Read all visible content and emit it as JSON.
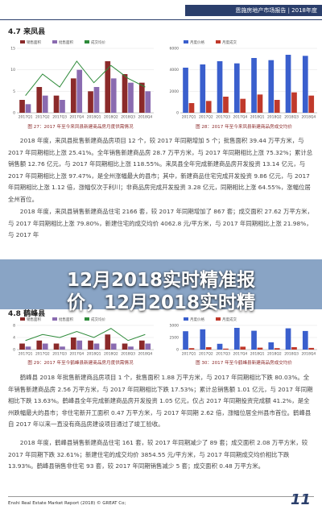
{
  "header": {
    "title": "恩施房地产市场报告",
    "year": "2018年度"
  },
  "sections": [
    {
      "heading": "4.7 来凤县",
      "figures": [
        {
          "caption": "图 27：2017 年至今来凤县新建商品房月度供需情况",
          "chart": {
            "type": "bar",
            "categories": [
              "2017Q1",
              "2017Q2",
              "2017Q3",
              "2017Q4",
              "2018Q1",
              "2018Q2",
              "2018Q3",
              "2018Q4"
            ],
            "series": [
              {
                "name": "销售面积",
                "color": "#8b2a2a",
                "values": [
                  3,
                  6,
                  4,
                  8,
                  5,
                  12,
                  9,
                  7
                ]
              },
              {
                "name": "批售面积",
                "color": "#8a6bb0",
                "values": [
                  2,
                  4,
                  3,
                  10,
                  6,
                  8,
                  7,
                  5
                ]
              },
              {
                "name": "成交均价",
                "color": "#2e8b3a",
                "type": "line",
                "values": [
                  4,
                  9,
                  6,
                  12,
                  7,
                  11,
                  8,
                  6
                ]
              }
            ],
            "ylim": [
              0,
              15
            ],
            "yticks": [
              0,
              5,
              10,
              15
            ]
          }
        },
        {
          "caption": "图 28：2017 年至今来凤县新建商品房成交均价",
          "chart": {
            "type": "bar",
            "categories": [
              "2017Q1",
              "2017Q2",
              "2017Q3",
              "2017Q4",
              "2018Q1",
              "2018Q2",
              "2018Q3",
              "2018Q4"
            ],
            "series": [
              {
                "name": "月度价格",
                "color": "#3a5fcd",
                "values": [
                  4200,
                  4500,
                  4800,
                  4600,
                  5100,
                  4900,
                  5400,
                  5300
                ]
              },
              {
                "name": "月度成交",
                "color": "#c0392b",
                "values": [
                  900,
                  1100,
                  1500,
                  1300,
                  1700,
                  1200,
                  1900,
                  1600
                ]
              }
            ],
            "ylim": [
              0,
              6000
            ],
            "yticks": [
              0,
              2000,
              4000,
              6000
            ]
          }
        }
      ],
      "paragraphs": [
        "2018 年度，来凤县批售新建商品房项目 12 个，较 2017 年同期增加 5 个；批售面积 39.44 万平方米，与 2017 年同期相比上涨 25.41%。全年销售新建商品房 28.7 万平方米，与 2017 年同期相比上涨 75.32%；累计总销售额 12.76 亿元，与 2017 年同期相比上涨 118.55%。来凤县全年完成新建商品房开发投资 13.14 亿元，与 2017 年同期相比上涨 97.47%，是全州涨幅最大的县市；其中，新建商品住宅完成开发投资 9.86 亿元，与 2017 年同期相比上涨 1.12 倍，涨幅仅次于利川；非商品房完成开发投资 3.28 亿元，同期相比上涨 64.55%，涨幅位居全州首位。",
        "2018 年度，来凤县销售新建商品住宅 2166 套，较 2017 年同期增加了 867 套；成交面积 27.62 万平方米，与 2017 年同期相比上涨 79.80%，新建住宅的成交均价 4062.8 元/平方米，与 2017 年同期相比上涨 21.98%，与 2017 年"
      ]
    },
    {
      "heading": "4.8 鹤峰县",
      "figures": [
        {
          "caption": "图 29：2017 年至今鹤峰县新建商品房月度供需情况",
          "chart": {
            "type": "bar",
            "categories": [
              "2017Q1",
              "2017Q2",
              "2017Q3",
              "2017Q4",
              "2018Q1",
              "2018Q2",
              "2018Q3",
              "2018Q4"
            ],
            "series": [
              {
                "name": "销售面积",
                "color": "#8b2a2a",
                "values": [
                  2,
                  3,
                  2,
                  4,
                  3,
                  5,
                  2,
                  3
                ]
              },
              {
                "name": "批售面积",
                "color": "#8a6bb0",
                "values": [
                  1,
                  2,
                  1,
                  3,
                  2,
                  2,
                  1,
                  2
                ]
              },
              {
                "name": "成交均价",
                "color": "#2e8b3a",
                "type": "line",
                "values": [
                  3,
                  5,
                  4,
                  6,
                  4,
                  7,
                  3,
                  5
                ]
              }
            ],
            "ylim": [
              0,
              8
            ],
            "yticks": [
              0,
              4,
              8
            ]
          }
        },
        {
          "caption": "图 30：2017 年至今鹤峰县新建商品房成交均价",
          "chart": {
            "type": "bar",
            "categories": [
              "2017Q1",
              "2017Q2",
              "2017Q3",
              "2017Q4",
              "2018Q1",
              "2018Q2",
              "2018Q3",
              "2018Q4"
            ],
            "series": [
              {
                "name": "月度价格",
                "color": "#3a5fcd",
                "values": [
                  3800,
                  4200,
                  1200,
                  4500,
                  3900,
                  1500,
                  4400,
                  3850
                ]
              },
              {
                "name": "月度成交",
                "color": "#c0392b",
                "values": [
                  300,
                  500,
                  200,
                  600,
                  400,
                  300,
                  500,
                  350
                ]
              }
            ],
            "ylim": [
              0,
              5000
            ],
            "yticks": [
              0,
              2500,
              5000
            ]
          }
        }
      ],
      "paragraphs": [
        "鹤峰县 2018 年批售新建商品房项目 1 个，批售面积 1.88 万平方米，与 2017 年同期相比下跌 80.03%。全年销售新建商品房 2.56 万平方米，与 2017 年同期相比下跌 17.53%；累计总销售额 1.01 亿元，与 2017 年同期相比下跌 13.63%。鹤峰县全年完成新建商品房开发投资 1.05 亿元，仅占 2017 年同期投资完成额 41.2%，是全州跌幅最大的县市；非住宅新开工面积 0.47 万平方米，与 2017 年同期 2.62 倍，涨幅位居全州县市首位。鹤峰县自 2017 年以来一直没有商品房建设项目通过了竣工验收。",
        "2018 年度，鹤峰县销售新建商品住宅 161 套，较 2017 年同期减少了 89 套；成交面积 2.08 万平方米，较 2017 年同期下跌 32.61%；新建住宅的成交均价 3854.55 元/平方米，与 2017 年同期成交均价相比下跌 13.93%。鹤峰县销售非住宅 93 套，较 2017 年同期销售减少 5 套；成交面积 0.48 万平方米。"
      ]
    }
  ],
  "overlay": {
    "lines": [
      "12月2018实时精准报",
      "价，12月2018实时精"
    ]
  },
  "footer": {
    "text": "Enshi Real Estate Market Report (2018) © GREAT Co;",
    "page": "11"
  }
}
